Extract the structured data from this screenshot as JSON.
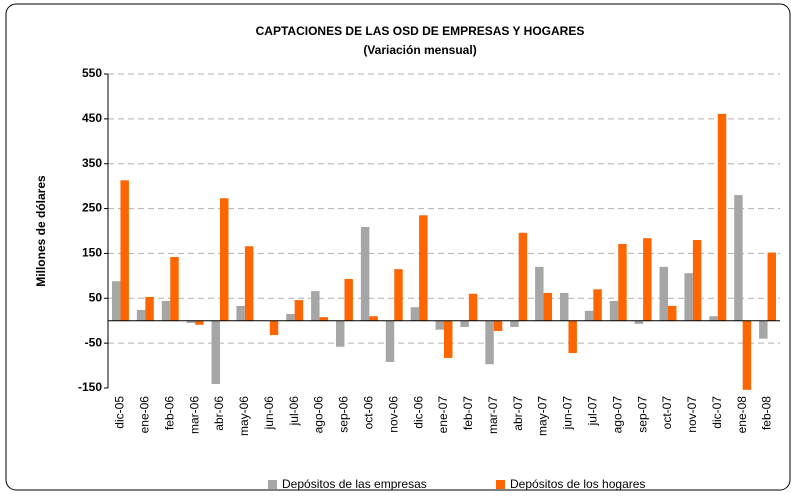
{
  "chart_data": {
    "type": "bar",
    "title": "CAPTACIONES DE LAS OSD DE EMPRESAS Y HOGARES",
    "subtitle": "(Variación mensual)",
    "y_label": "Millones de dólares",
    "categories": [
      "dic-05",
      "ene-06",
      "feb-06",
      "mar-06",
      "abr-06",
      "may-06",
      "jun-06",
      "jul-06",
      "ago-06",
      "sep-06",
      "oct-06",
      "nov-06",
      "dic-06",
      "ene-07",
      "feb-07",
      "mar-07",
      "abr-07",
      "may-07",
      "jun-07",
      "jul-07",
      "ago-07",
      "sep-07",
      "oct-07",
      "nov-07",
      "dic-07",
      "ene-08",
      "feb-08"
    ],
    "series": [
      {
        "name": "Depósitos de las empresas",
        "color": "#a6a6a6",
        "values": [
          88,
          24,
          44,
          -5,
          -141,
          33,
          0,
          15,
          66,
          -58,
          209,
          -92,
          30,
          -20,
          -14,
          -97,
          -14,
          120,
          62,
          22,
          44,
          -7,
          120,
          106,
          10,
          280,
          -40
        ]
      },
      {
        "name": "Depósitos de los hogares",
        "color": "#ff6600",
        "values": [
          313,
          53,
          142,
          -9,
          273,
          166,
          -32,
          46,
          8,
          93,
          10,
          115,
          235,
          -83,
          60,
          -23,
          196,
          62,
          -72,
          70,
          171,
          184,
          33,
          180,
          461,
          -154,
          152
        ]
      }
    ],
    "ylim": [
      -150,
      550
    ],
    "yticks": [
      -150,
      -50,
      50,
      150,
      250,
      350,
      450,
      550
    ],
    "grid": true,
    "legend": "bottom"
  }
}
